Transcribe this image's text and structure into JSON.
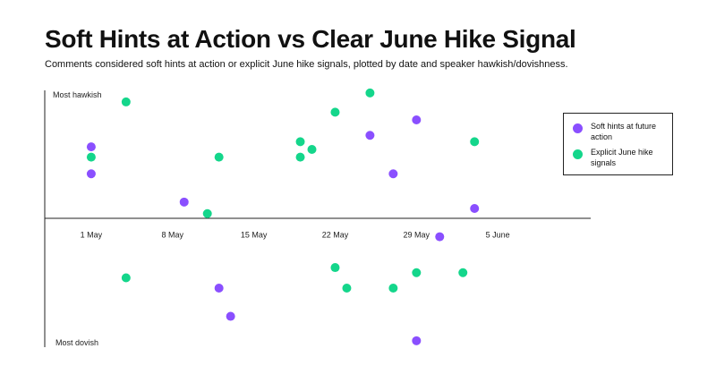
{
  "title": "Soft Hints at Action vs Clear June Hike Signal",
  "subtitle": "Comments considered soft hints at action or explicit June hike signals, plotted by date and speaker hawkish/dovishness.",
  "chart_data": {
    "type": "scatter",
    "title": "Soft Hints at Action vs Clear June Hike Signal",
    "subtitle": "Comments considered soft hints at action or explicit June hike signals, plotted by date and speaker hawkish/dovishness.",
    "xlabel": "",
    "ylabel": "",
    "x_axis": {
      "type": "date",
      "year": 2023,
      "ticks": [
        "1 May",
        "8 May",
        "15 May",
        "22 May",
        "29 May",
        "5 June"
      ],
      "tick_dates": [
        "2023-05-01",
        "2023-05-08",
        "2023-05-15",
        "2023-05-22",
        "2023-05-29",
        "2023-06-05"
      ],
      "range": [
        "2023-04-27",
        "2023-06-13"
      ]
    },
    "y_axis": {
      "top_label": "Most hawkish",
      "bottom_label": "Most dovish",
      "range": [
        -10,
        10
      ],
      "baseline": 0
    },
    "grid": false,
    "legend_position": "right",
    "series": [
      {
        "name": "Soft hints at future action",
        "color": "#8a4fff",
        "points": [
          {
            "x": "2023-05-01",
            "y": 5.6
          },
          {
            "x": "2023-05-01",
            "y": 3.5
          },
          {
            "x": "2023-05-09",
            "y": 1.3
          },
          {
            "x": "2023-05-12",
            "y": -5.4
          },
          {
            "x": "2023-05-13",
            "y": -7.6
          },
          {
            "x": "2023-05-25",
            "y": 6.5
          },
          {
            "x": "2023-05-27",
            "y": 3.5
          },
          {
            "x": "2023-05-29",
            "y": 7.7
          },
          {
            "x": "2023-05-29",
            "y": -9.5
          },
          {
            "x": "2023-05-31",
            "y": -1.4
          },
          {
            "x": "2023-06-03",
            "y": 0.8
          }
        ]
      },
      {
        "name": "Explicit June hike signals",
        "color": "#14d68b",
        "points": [
          {
            "x": "2023-05-01",
            "y": 4.8
          },
          {
            "x": "2023-05-04",
            "y": 9.1
          },
          {
            "x": "2023-05-04",
            "y": -4.6
          },
          {
            "x": "2023-05-11",
            "y": 0.4
          },
          {
            "x": "2023-05-12",
            "y": 4.8
          },
          {
            "x": "2023-05-19",
            "y": 6.0
          },
          {
            "x": "2023-05-19",
            "y": 4.8
          },
          {
            "x": "2023-05-20",
            "y": 5.4
          },
          {
            "x": "2023-05-22",
            "y": 8.3
          },
          {
            "x": "2023-05-22",
            "y": -3.8
          },
          {
            "x": "2023-05-23",
            "y": -5.4
          },
          {
            "x": "2023-05-25",
            "y": 9.8
          },
          {
            "x": "2023-05-27",
            "y": -5.4
          },
          {
            "x": "2023-05-29",
            "y": -4.2
          },
          {
            "x": "2023-06-02",
            "y": -4.2
          },
          {
            "x": "2023-06-03",
            "y": 6.0
          }
        ]
      }
    ]
  }
}
